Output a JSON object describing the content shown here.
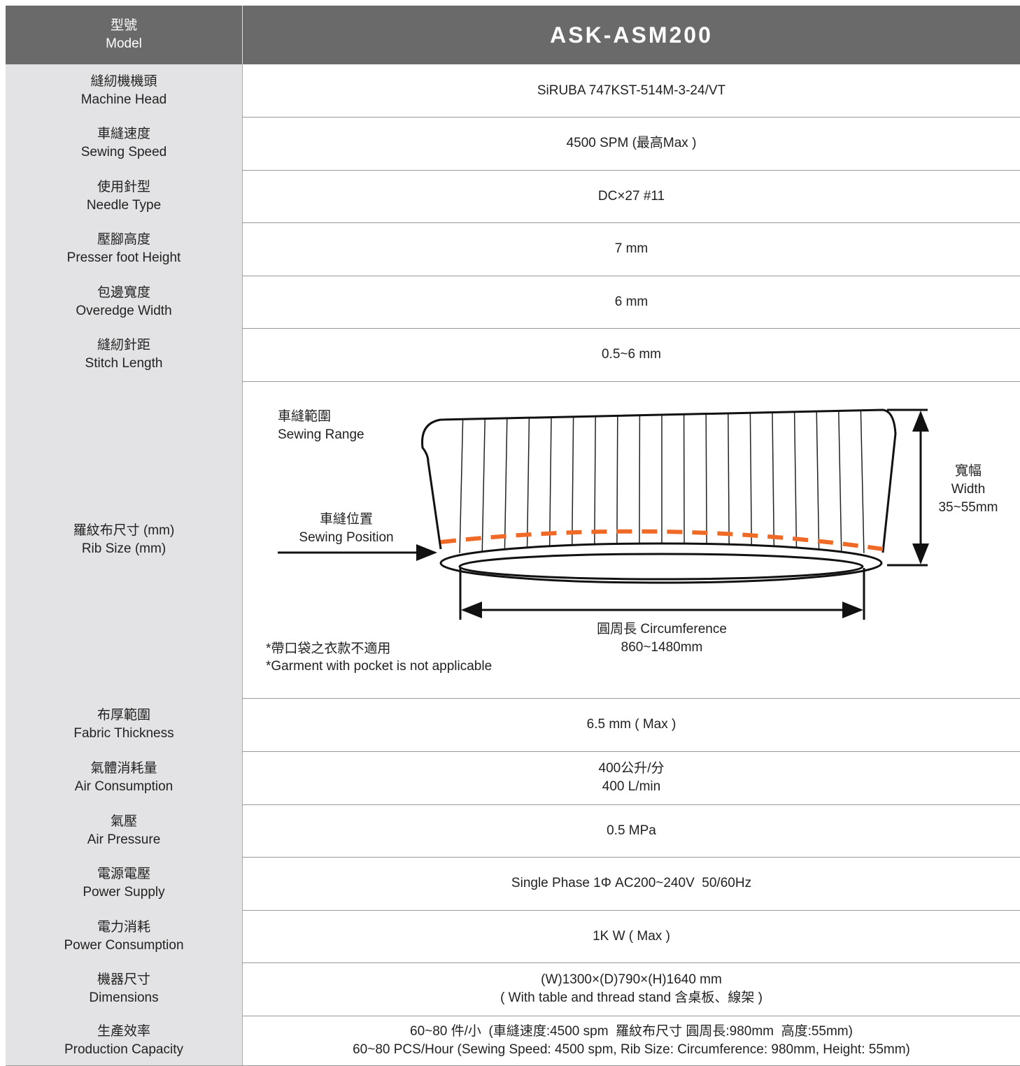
{
  "header": {
    "label_zh": "型號",
    "label_en": "Model",
    "model": "ASK-ASM200"
  },
  "rows": [
    {
      "label_zh": "縫紉機機頭",
      "label_en": "Machine Head",
      "value": [
        "SiRUBA 747KST-514M-3-24/VT"
      ]
    },
    {
      "label_zh": "車縫速度",
      "label_en": "Sewing Speed",
      "value": [
        "4500 SPM (最高Max )"
      ]
    },
    {
      "label_zh": "使用針型",
      "label_en": "Needle Type",
      "value": [
        "DC×27 #11"
      ]
    },
    {
      "label_zh": "壓腳高度",
      "label_en": "Presser foot Height",
      "value": [
        "7 mm"
      ]
    },
    {
      "label_zh": "包邊寬度",
      "label_en": "Overedge Width",
      "value": [
        "6 mm"
      ]
    },
    {
      "label_zh": "縫紉針距",
      "label_en": "Stitch Length",
      "value": [
        "0.5~6 mm"
      ]
    },
    {
      "label_zh": "羅紋布尺寸 (mm)",
      "label_en": "Rib Size (mm)",
      "diagram": {
        "range_zh": "車縫範圍",
        "range_en": "Sewing Range",
        "position_zh": "車縫位置",
        "position_en": "Sewing Position",
        "width_zh": "寬幅",
        "width_en": "Width",
        "width_value": "35~55mm",
        "circumference": "圓周長 Circumference",
        "circumference_value": "860~1480mm",
        "note_zh": "*帶口袋之衣款不適用",
        "note_en": "*Garment with pocket is not applicable"
      }
    },
    {
      "label_zh": "布厚範圍",
      "label_en": "Fabric Thickness",
      "value": [
        "6.5 mm ( Max )"
      ]
    },
    {
      "label_zh": "氣體消耗量",
      "label_en": "Air Consumption",
      "value": [
        "400公升/分",
        "400 L/min"
      ]
    },
    {
      "label_zh": "氣壓",
      "label_en": "Air Pressure",
      "value": [
        "0.5 MPa"
      ]
    },
    {
      "label_zh": "電源電壓",
      "label_en": "Power Supply",
      "value": [
        "Single Phase 1Φ AC200~240V  50/60Hz"
      ]
    },
    {
      "label_zh": "電力消耗",
      "label_en": "Power Consumption",
      "value": [
        "1K W ( Max )"
      ]
    },
    {
      "label_zh": "機器尺寸",
      "label_en": "Dimensions",
      "value": [
        "(W)1300×(D)790×(H)1640 mm",
        "( With table and thread stand 含桌板、線架 )"
      ]
    },
    {
      "label_zh": "生產效率",
      "label_en": "Production Capacity",
      "value": [
        "60~80 件/小  (車縫速度:4500 spm  羅紋布尺寸 圓周長:980mm  高度:55mm)",
        "60~80 PCS/Hour (Sewing Speed: 4500 spm, Rib Size: Circumference: 980mm, Height: 55mm)"
      ]
    }
  ]
}
